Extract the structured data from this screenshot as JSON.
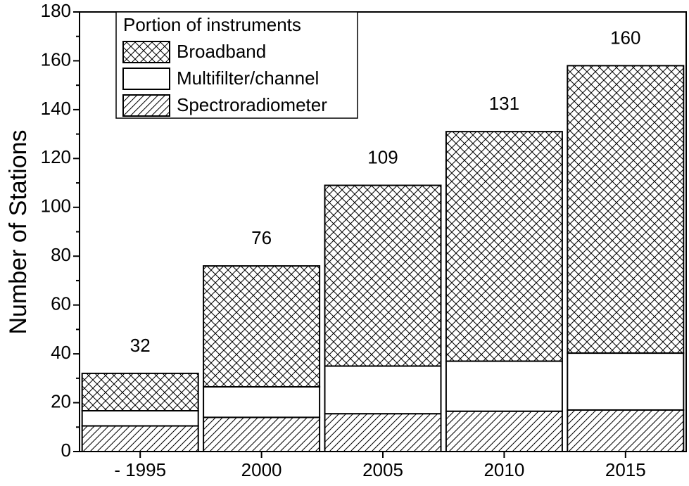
{
  "chart_data": {
    "type": "stacked-bar",
    "y_label": "Number of Stations",
    "legend_title": "Portion of instruments",
    "categories": [
      "- 1995",
      "2000",
      "2005",
      "2010",
      "2015"
    ],
    "series": [
      {
        "name": "Spectroradiometer",
        "color": "#000000",
        "hatch": "diagonal",
        "values": [
          10.5,
          14,
          15.5,
          16.5,
          17
        ]
      },
      {
        "name": "Multifilter/channel",
        "color": "#000000",
        "hatch": "none",
        "values": [
          6.2,
          12.5,
          19.5,
          20.5,
          23.3
        ]
      },
      {
        "name": "Broadband",
        "color": "#000000",
        "hatch": "cross",
        "values": [
          15.3,
          49.5,
          74,
          94,
          117.7
        ]
      }
    ],
    "totals": [
      32,
      76,
      109,
      131,
      160
    ],
    "ylim": [
      0,
      180
    ],
    "yticks": [
      0,
      20,
      40,
      60,
      80,
      100,
      120,
      140,
      160,
      180
    ],
    "legend": "upper left"
  }
}
